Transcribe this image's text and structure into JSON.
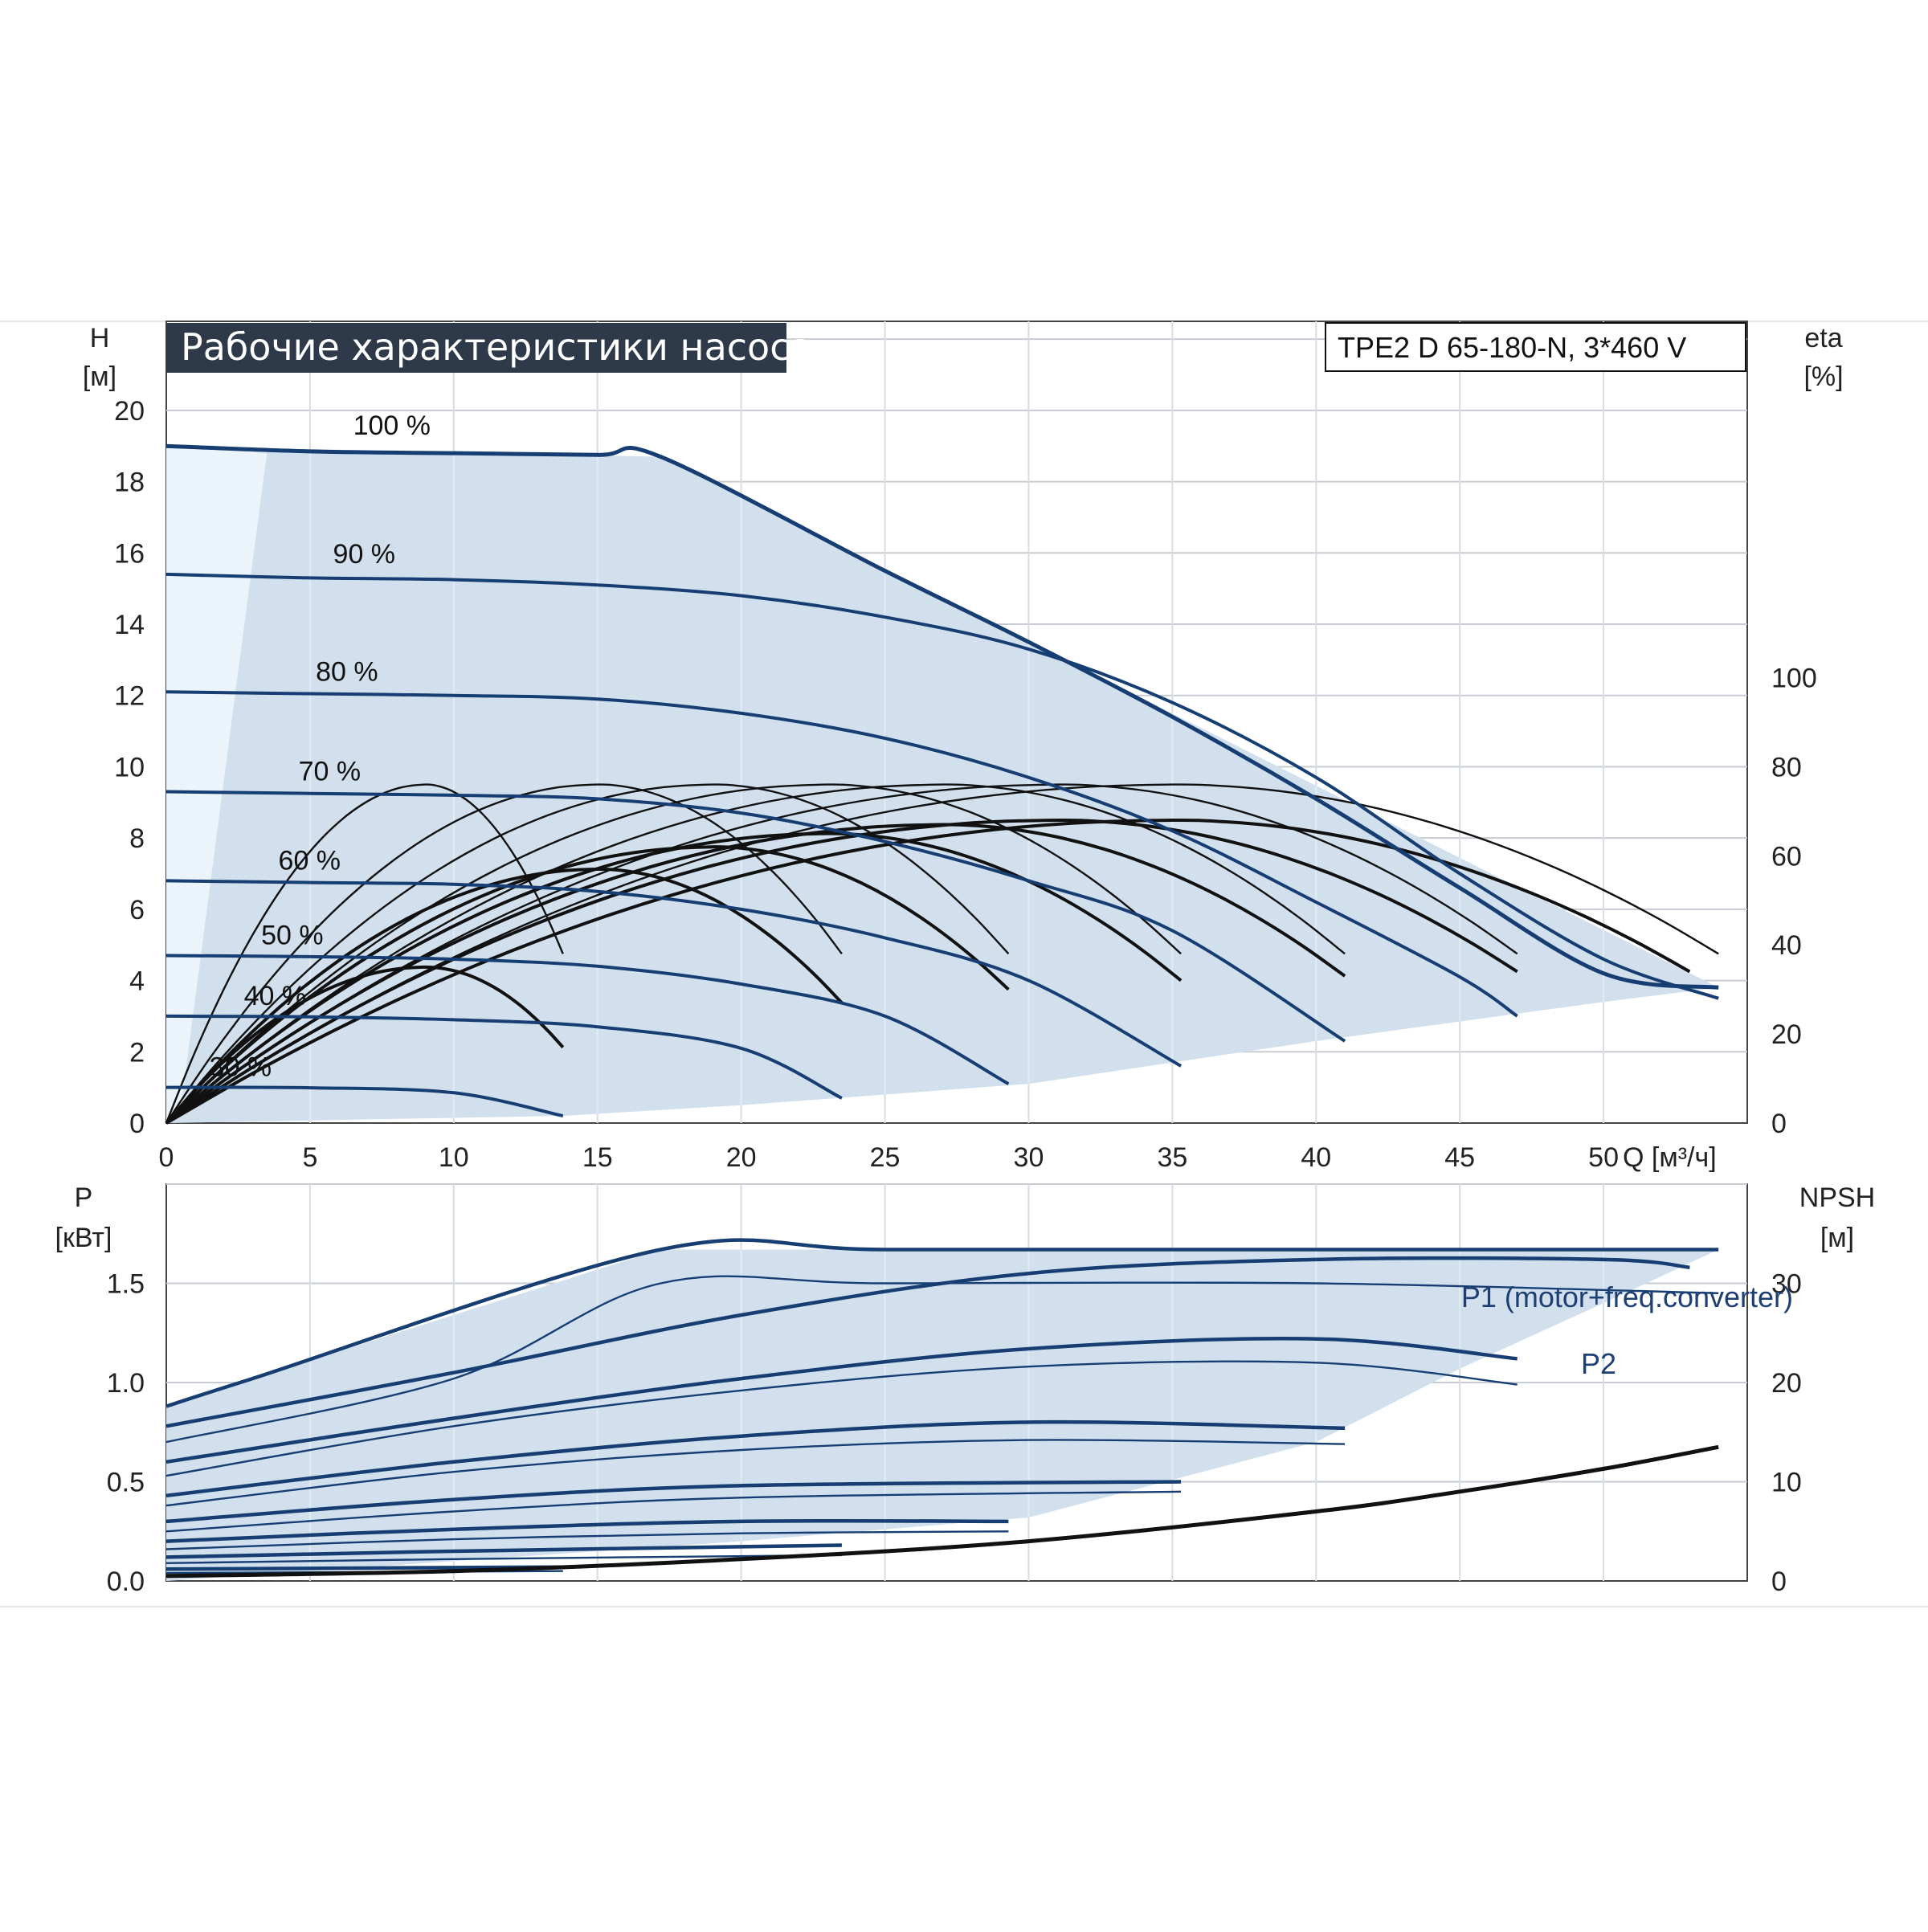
{
  "colors": {
    "accent": "#173e73",
    "envelope": "#d2e0ee",
    "envelope_light": "#ebf3fb",
    "grid": "#c7ccd3",
    "title_bg": "#2e3a4a",
    "efficiency": "#111111"
  },
  "chart_data": [
    {
      "id": "head",
      "type": "line",
      "title": "Рабочие характеристики насоса",
      "model": "TPE2 D 65-180-N, 3*460 V",
      "xlabel": "Q [м³/ч]",
      "ylabel_line1": "H",
      "ylabel_line2": "[м]",
      "y2label_line1": "eta",
      "y2label_line2": "[%]",
      "xlim": [
        0,
        55
      ],
      "ylim": [
        0,
        22.5
      ],
      "y2lim": [
        0,
        180
      ],
      "xticks": [
        "0",
        "5",
        "10",
        "15",
        "20",
        "25",
        "30",
        "35",
        "40",
        "45",
        "50"
      ],
      "yticks": [
        "0",
        "2",
        "4",
        "6",
        "8",
        "10",
        "12",
        "14",
        "16",
        "18",
        "20"
      ],
      "y2ticks": [
        "0",
        "20",
        "40",
        "60",
        "80",
        "100"
      ],
      "grid": true,
      "speed_curves": [
        {
          "name": "100 %",
          "points": [
            [
              0,
              19.0
            ],
            [
              5,
              18.85
            ],
            [
              10,
              18.8
            ],
            [
              15,
              18.75
            ],
            [
              17.2,
              18.7
            ],
            [
              25,
              15.5
            ],
            [
              30,
              13.5
            ],
            [
              35,
              11.4
            ],
            [
              40,
              9.1
            ],
            [
              45,
              6.6
            ],
            [
              50,
              4.2
            ],
            [
              54.0,
              3.8
            ]
          ]
        },
        {
          "name": "90 %",
          "points": [
            [
              0,
              15.4
            ],
            [
              5,
              15.3
            ],
            [
              10,
              15.25
            ],
            [
              15,
              15.1
            ],
            [
              20,
              14.8
            ],
            [
              25,
              14.2
            ],
            [
              30,
              13.3
            ],
            [
              35,
              11.8
            ],
            [
              40,
              9.7
            ],
            [
              45,
              7.0
            ],
            [
              50,
              4.6
            ],
            [
              54.0,
              3.5
            ]
          ]
        },
        {
          "name": "80 %",
          "points": [
            [
              0,
              12.1
            ],
            [
              5,
              12.05
            ],
            [
              10,
              12.0
            ],
            [
              15,
              11.9
            ],
            [
              20,
              11.5
            ],
            [
              25,
              10.8
            ],
            [
              30,
              9.7
            ],
            [
              35,
              8.2
            ],
            [
              40,
              6.2
            ],
            [
              45,
              4.1
            ],
            [
              47.0,
              3.0
            ]
          ]
        },
        {
          "name": "70 %",
          "points": [
            [
              0,
              9.3
            ],
            [
              5,
              9.25
            ],
            [
              10,
              9.2
            ],
            [
              15,
              9.1
            ],
            [
              20,
              8.7
            ],
            [
              25,
              7.9
            ],
            [
              30,
              6.8
            ],
            [
              35,
              5.4
            ],
            [
              41.0,
              2.3
            ]
          ]
        },
        {
          "name": "60 %",
          "points": [
            [
              0,
              6.8
            ],
            [
              5,
              6.75
            ],
            [
              10,
              6.7
            ],
            [
              15,
              6.5
            ],
            [
              20,
              6.0
            ],
            [
              25,
              5.2
            ],
            [
              30,
              4.0
            ],
            [
              35.3,
              1.6
            ]
          ]
        },
        {
          "name": "50 %",
          "points": [
            [
              0,
              4.7
            ],
            [
              5,
              4.67
            ],
            [
              10,
              4.6
            ],
            [
              15,
              4.4
            ],
            [
              20,
              3.9
            ],
            [
              25,
              3.0
            ],
            [
              29.3,
              1.1
            ]
          ]
        },
        {
          "name": "40 %",
          "points": [
            [
              0,
              3.0
            ],
            [
              5,
              2.98
            ],
            [
              10,
              2.9
            ],
            [
              15,
              2.7
            ],
            [
              20,
              2.1
            ],
            [
              23.5,
              0.7
            ]
          ]
        },
        {
          "name": "30 %",
          "points": [
            [
              0,
              1.0
            ],
            [
              5,
              0.99
            ],
            [
              10,
              0.85
            ],
            [
              13.8,
              0.2
            ]
          ]
        }
      ],
      "envelope": [
        [
          0,
          19.0
        ],
        [
          17.2,
          18.7
        ],
        [
          54.0,
          3.8
        ],
        [
          50,
          3.4
        ],
        [
          40,
          2.3
        ],
        [
          30,
          1.1
        ],
        [
          20,
          0.5
        ],
        [
          13.8,
          0.2
        ],
        [
          0,
          0
        ]
      ],
      "envelope_light": [
        [
          0,
          19.0
        ],
        [
          3.5,
          18.8
        ],
        [
          0.5,
          0.4
        ],
        [
          0,
          0
        ]
      ],
      "efficiency_curves": [
        {
          "peak_x": 9,
          "peak": 76,
          "end_x": 13.8,
          "end_y": 38
        },
        {
          "peak_x": 15,
          "peak": 76,
          "end_x": 23.5,
          "end_y": 38
        },
        {
          "peak_x": 19,
          "peak": 76,
          "end_x": 29.3,
          "end_y": 38
        },
        {
          "peak_x": 23,
          "peak": 76,
          "end_x": 35.3,
          "end_y": 38
        },
        {
          "peak_x": 27,
          "peak": 76,
          "end_x": 41.0,
          "end_y": 38
        },
        {
          "peak_x": 31,
          "peak": 76,
          "end_x": 47.0,
          "end_y": 38
        },
        {
          "peak_x": 35,
          "peak": 76,
          "end_x": 54.0,
          "end_y": 38
        },
        {
          "peak_x": 9,
          "peak": 35,
          "end_x": 13.8,
          "end_y": 17
        },
        {
          "peak_x": 15,
          "peak": 57,
          "end_x": 23.5,
          "end_y": 27
        },
        {
          "peak_x": 19,
          "peak": 62,
          "end_x": 29.3,
          "end_y": 30
        },
        {
          "peak_x": 23,
          "peak": 65,
          "end_x": 35.3,
          "end_y": 32
        },
        {
          "peak_x": 27,
          "peak": 67,
          "end_x": 41.0,
          "end_y": 33
        },
        {
          "peak_x": 31,
          "peak": 68,
          "end_x": 47.0,
          "end_y": 34
        },
        {
          "peak_x": 35,
          "peak": 68,
          "end_x": 53.0,
          "end_y": 34
        }
      ]
    },
    {
      "id": "power",
      "type": "line",
      "ylabel_line1": "P",
      "ylabel_line2": "[кВт]",
      "y2label_line1": "NPSH",
      "y2label_line2": "[м]",
      "xlim": [
        0,
        55
      ],
      "ylim": [
        0,
        2.0
      ],
      "y2lim": [
        0,
        40
      ],
      "yticks": [
        "0.0",
        "0.5",
        "1.0",
        "1.5"
      ],
      "y2ticks": [
        "0",
        "10",
        "20",
        "30"
      ],
      "grid": true,
      "series_labels": [
        "P1 (motor+freq.converter)",
        "P2"
      ],
      "p1_curves": [
        {
          "points": [
            [
              0,
              0.88
            ],
            [
              3,
              1.02
            ],
            [
              17.2,
              1.67
            ],
            [
              25,
              1.67
            ],
            [
              40,
              1.67
            ],
            [
              54.0,
              1.67
            ]
          ]
        },
        {
          "points": [
            [
              0,
              0.78
            ],
            [
              10,
              1.05
            ],
            [
              20,
              1.34
            ],
            [
              30,
              1.55
            ],
            [
              40,
              1.62
            ],
            [
              50,
              1.62
            ],
            [
              53,
              1.58
            ]
          ]
        },
        {
          "points": [
            [
              0,
              0.6
            ],
            [
              10,
              0.82
            ],
            [
              20,
              1.02
            ],
            [
              30,
              1.17
            ],
            [
              40,
              1.22
            ],
            [
              47.0,
              1.12
            ]
          ]
        },
        {
          "points": [
            [
              0,
              0.43
            ],
            [
              10,
              0.6
            ],
            [
              20,
              0.73
            ],
            [
              30,
              0.8
            ],
            [
              41.0,
              0.77
            ]
          ]
        },
        {
          "points": [
            [
              0,
              0.3
            ],
            [
              10,
              0.41
            ],
            [
              20,
              0.48
            ],
            [
              35.3,
              0.5
            ]
          ]
        },
        {
          "points": [
            [
              0,
              0.2
            ],
            [
              10,
              0.26
            ],
            [
              20,
              0.3
            ],
            [
              29.3,
              0.3
            ]
          ]
        },
        {
          "points": [
            [
              0,
              0.12
            ],
            [
              10,
              0.15
            ],
            [
              23.5,
              0.18
            ]
          ]
        },
        {
          "points": [
            [
              0,
              0.06
            ],
            [
              13.8,
              0.07
            ]
          ]
        }
      ],
      "p2_curves": [
        {
          "points": [
            [
              0,
              0.7
            ],
            [
              10,
              1.02
            ],
            [
              17.2,
              1.5
            ],
            [
              25,
              1.5
            ],
            [
              40,
              1.5
            ],
            [
              54.0,
              1.45
            ]
          ]
        },
        {
          "points": [
            [
              0,
              0.53
            ],
            [
              10,
              0.78
            ],
            [
              20,
              0.96
            ],
            [
              30,
              1.08
            ],
            [
              40,
              1.1
            ],
            [
              47.0,
              0.99
            ]
          ]
        },
        {
          "points": [
            [
              0,
              0.38
            ],
            [
              10,
              0.55
            ],
            [
              20,
              0.66
            ],
            [
              30,
              0.71
            ],
            [
              41.0,
              0.69
            ]
          ]
        },
        {
          "points": [
            [
              0,
              0.25
            ],
            [
              10,
              0.35
            ],
            [
              20,
              0.42
            ],
            [
              35.3,
              0.45
            ]
          ]
        },
        {
          "points": [
            [
              0,
              0.16
            ],
            [
              10,
              0.21
            ],
            [
              20,
              0.24
            ],
            [
              29.3,
              0.25
            ]
          ]
        },
        {
          "points": [
            [
              0,
              0.09
            ],
            [
              10,
              0.11
            ],
            [
              23.5,
              0.13
            ]
          ]
        },
        {
          "points": [
            [
              0,
              0.04
            ],
            [
              13.8,
              0.05
            ]
          ]
        }
      ],
      "npsh": [
        [
          0,
          0.5
        ],
        [
          10,
          1.0
        ],
        [
          20,
          2.2
        ],
        [
          30,
          4.0
        ],
        [
          40,
          7.0
        ],
        [
          45,
          9.0
        ],
        [
          50,
          11.3
        ],
        [
          54.0,
          13.5
        ]
      ],
      "envelope": [
        [
          0,
          0.88
        ],
        [
          3,
          1.02
        ],
        [
          17.2,
          1.67
        ],
        [
          54.0,
          1.67
        ],
        [
          50,
          1.4
        ],
        [
          45,
          1.07
        ],
        [
          40,
          0.7
        ],
        [
          30,
          0.32
        ],
        [
          20,
          0.2
        ],
        [
          0,
          0
        ]
      ]
    }
  ]
}
